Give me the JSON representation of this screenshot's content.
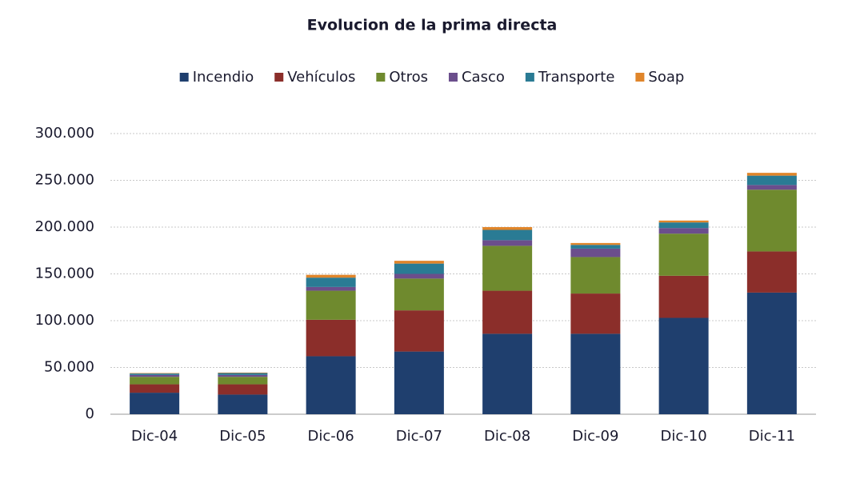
{
  "chart_data": {
    "type": "stacked_bar",
    "title": "Evolucion de la prima directa",
    "categories": [
      "Dic-04",
      "Dic-05",
      "Dic-06",
      "Dic-07",
      "Dic-08",
      "Dic-09",
      "Dic-10",
      "Dic-11"
    ],
    "series": [
      {
        "name": "Incendio",
        "color": "#1f3f6e",
        "values": [
          23000,
          21000,
          62000,
          67000,
          86000,
          86000,
          103000,
          130000
        ]
      },
      {
        "name": "Vehículos",
        "color": "#8b2e2a",
        "values": [
          9000,
          11000,
          39000,
          44000,
          46000,
          43000,
          45000,
          44000
        ]
      },
      {
        "name": "Otros",
        "color": "#6f8a2e",
        "values": [
          8000,
          8000,
          31000,
          34000,
          48000,
          39000,
          45000,
          66000
        ]
      },
      {
        "name": "Casco",
        "color": "#6b4e8c",
        "values": [
          2000,
          2000,
          4000,
          5000,
          6000,
          9000,
          6000,
          5000
        ]
      },
      {
        "name": "Transporte",
        "color": "#2a7b94",
        "values": [
          1500,
          2000,
          10000,
          11000,
          11000,
          4000,
          6000,
          10000
        ]
      },
      {
        "name": "Soap",
        "color": "#e0852a",
        "values": [
          500,
          500,
          3000,
          3000,
          3000,
          2000,
          2000,
          3000
        ]
      }
    ],
    "ylim": [
      0,
      300000
    ],
    "yticks": [
      0,
      {
        "value": 50000,
        "label": "50.000"
      },
      {
        "value": 100000,
        "label": "100.000"
      },
      {
        "value": 150000,
        "label": "150.000"
      },
      {
        "value": 200000,
        "label": "200.000"
      },
      {
        "value": 250000,
        "label": "250.000"
      },
      {
        "value": 300000,
        "label": "300.000"
      }
    ],
    "grid": true,
    "legend": "top"
  }
}
